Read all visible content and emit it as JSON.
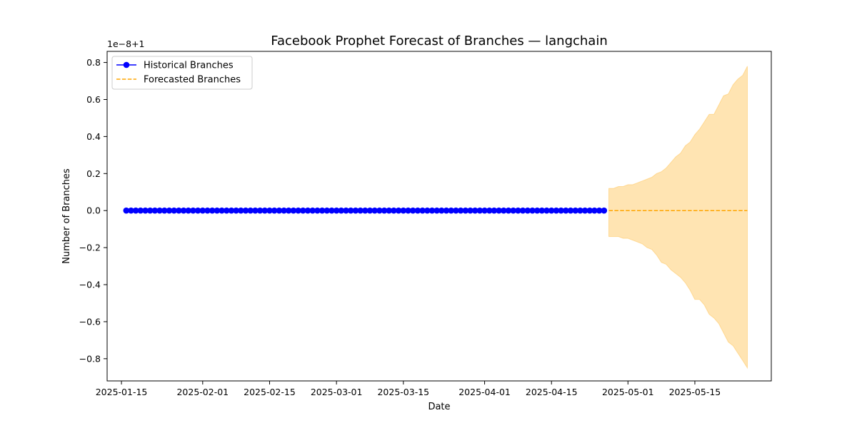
{
  "chart_data": {
    "type": "line",
    "title": "Facebook Prophet Forecast of Branches — langchain",
    "xlabel": "Date",
    "ylabel": "Number of Branches",
    "offset_label": "1e−8+1",
    "x_ticks": [
      "2025-01-15",
      "2025-02-01",
      "2025-02-15",
      "2025-03-01",
      "2025-03-15",
      "2025-04-01",
      "2025-04-15",
      "2025-05-01",
      "2025-05-15"
    ],
    "y_ticks": [
      "0.8",
      "0.6",
      "0.4",
      "0.2",
      "0.0",
      "−0.2",
      "−0.4",
      "−0.6",
      "−0.8"
    ],
    "xlim": [
      "2025-01-12",
      "2025-05-31"
    ],
    "ylim": [
      -0.92,
      0.86
    ],
    "legend_position": "top-left",
    "grid": false,
    "series": [
      {
        "name": "Historical Branches",
        "color": "#0000ff",
        "style": "solid-with-circle-markers",
        "start": "2025-01-16",
        "end": "2025-04-26",
        "step_days": 1,
        "value": 0.0
      },
      {
        "name": "Forecasted Branches",
        "color": "#ffa500",
        "style": "dashed",
        "start": "2025-04-27",
        "end": "2025-05-26",
        "step_days": 1,
        "value": 0.0
      }
    ],
    "confidence_band": {
      "color": "#ffa500",
      "start": "2025-04-27",
      "step_days": 1,
      "upper": [
        0.12,
        0.12,
        0.13,
        0.13,
        0.14,
        0.14,
        0.15,
        0.16,
        0.17,
        0.18,
        0.2,
        0.21,
        0.23,
        0.26,
        0.29,
        0.31,
        0.35,
        0.37,
        0.41,
        0.44,
        0.48,
        0.52,
        0.52,
        0.57,
        0.62,
        0.63,
        0.68,
        0.71,
        0.73,
        0.78
      ],
      "lower": [
        -0.14,
        -0.14,
        -0.14,
        -0.15,
        -0.15,
        -0.16,
        -0.17,
        -0.18,
        -0.2,
        -0.21,
        -0.24,
        -0.28,
        -0.29,
        -0.32,
        -0.34,
        -0.36,
        -0.39,
        -0.43,
        -0.48,
        -0.48,
        -0.51,
        -0.56,
        -0.58,
        -0.61,
        -0.66,
        -0.71,
        -0.73,
        -0.77,
        -0.81,
        -0.85
      ]
    }
  }
}
